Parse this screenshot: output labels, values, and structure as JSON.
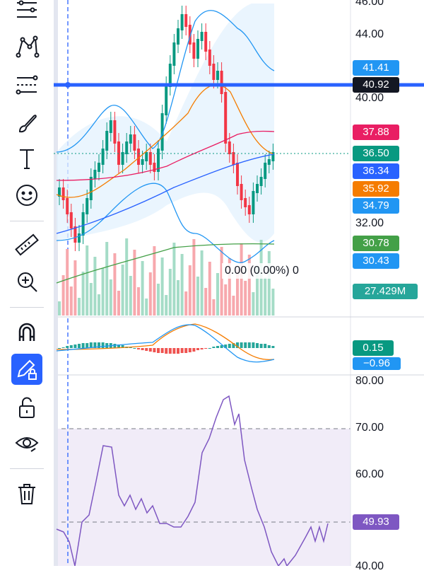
{
  "toolbar": {
    "tools": [
      {
        "name": "trend-line-tool-icon"
      },
      {
        "name": "pattern-tool-icon"
      },
      {
        "name": "fib-tool-icon"
      },
      {
        "name": "brush-tool-icon"
      },
      {
        "name": "text-tool-icon"
      },
      {
        "name": "emoji-tool-icon"
      },
      {
        "name": "ruler-tool-icon"
      },
      {
        "name": "zoom-in-icon"
      },
      {
        "name": "magnet-icon"
      },
      {
        "name": "lock-drawing-icon"
      },
      {
        "name": "unlock-icon"
      },
      {
        "name": "eye-icon"
      },
      {
        "name": "trash-icon"
      }
    ]
  },
  "price_axis": {
    "labels": [
      "46.00",
      "44.00",
      "40.00",
      "32.00"
    ]
  },
  "price_tags": [
    {
      "label": "41.41",
      "color": "#2196f3"
    },
    {
      "label": "40.92",
      "color": "#131722"
    },
    {
      "label": "37.88",
      "color": "#e91e63"
    },
    {
      "label": "36.50",
      "color": "#089981"
    },
    {
      "label": "36.34",
      "color": "#2962ff"
    },
    {
      "label": "35.92",
      "color": "#f57c00"
    },
    {
      "label": "34.79",
      "color": "#2196f3"
    },
    {
      "label": "30.78",
      "color": "#43a047"
    },
    {
      "label": "30.43",
      "color": "#2196f3"
    }
  ],
  "volume": {
    "tag": "27.429M",
    "tag_color": "#26a69a"
  },
  "macd": {
    "tags": [
      {
        "label": "0.15",
        "color": "#089981"
      },
      {
        "label": "−0.96",
        "color": "#2196f3"
      }
    ]
  },
  "rsi": {
    "axis_labels": [
      "80.00",
      "70.00",
      "60.00",
      "40.00"
    ],
    "tag": "49.93",
    "tag_color": "#7e57c2"
  },
  "readout": {
    "text": "0.00 (0.00%) 0"
  },
  "colors": {
    "up": "#089981",
    "down": "#f23645",
    "accent": "#2962ff",
    "rsi_line": "#7e57c2"
  }
}
